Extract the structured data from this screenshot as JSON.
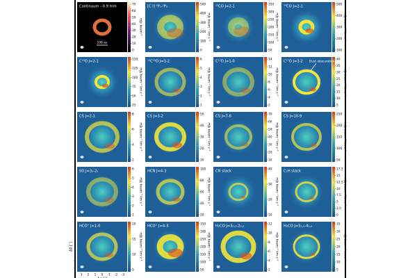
{
  "panels": [
    {
      "label": "Continuum - 0.9 mm",
      "colorbar_label": "mJy beam⁻¹",
      "ticks": [
        0,
        10,
        20,
        30,
        40,
        50,
        60,
        70
      ]
    },
    {
      "label": "[C I] ³P₁-³P₀",
      "colorbar_label": "mJy beam⁻¹ km s⁻¹",
      "ticks": [
        0,
        100,
        200,
        300,
        400,
        500
      ]
    },
    {
      "label": "¹²CO J=2-1",
      "colorbar_label": "mJy beam⁻¹ km s⁻¹",
      "ticks": [
        50,
        100,
        150,
        200,
        250,
        300,
        350
      ]
    },
    {
      "label": "¹³CO J=2-1",
      "colorbar_label": "mJy beam⁻¹ km s⁻¹",
      "ticks": [
        100,
        200,
        300,
        400,
        500
      ]
    },
    {
      "label": "C¹⁸O J=2-1",
      "colorbar_label": "mJy beam⁻¹ km s⁻¹",
      "ticks": [
        25,
        50,
        75,
        100,
        125,
        150
      ]
    },
    {
      "label": "¹³C¹⁸O J=3-2",
      "colorbar_label": "mJy beam⁻¹ km s⁻¹",
      "ticks": [
        1,
        2,
        3,
        4,
        5,
        6
      ]
    },
    {
      "label": "C¹⁷O J=1-0",
      "colorbar_label": "mJy beam⁻¹ km s⁻¹",
      "ticks": [
        2,
        4,
        6,
        8,
        10,
        12,
        14
      ]
    },
    {
      "label": "C¹⁷O J=3-2",
      "colorbar_label": "mJy beam⁻¹ km s⁻¹",
      "ticks": [
        5,
        10,
        15,
        20,
        25,
        30,
        35,
        40
      ]
    },
    {
      "label": "CS J=2-1",
      "colorbar_label": "mJy beam⁻¹ km s⁻¹",
      "ticks": [
        2,
        4,
        6,
        8
      ]
    },
    {
      "label": "CS J=3-2",
      "colorbar_label": "mJy beam⁻¹ km s⁻¹",
      "ticks": [
        10,
        20,
        30,
        40,
        50
      ]
    },
    {
      "label": "CS J=7-6",
      "colorbar_label": "mJy beam⁻¹ km s⁻¹",
      "ticks": [
        10,
        20,
        30,
        40,
        50,
        60,
        70
      ]
    },
    {
      "label": "CS J=10-9",
      "colorbar_label": "mJy beam⁻¹ km s⁻¹",
      "ticks": [
        50,
        100,
        150,
        200,
        250
      ]
    },
    {
      "label": "SO J=3₂-2₁",
      "colorbar_label": "mJy beam⁻¹ km s⁻¹",
      "ticks": [
        1,
        2,
        3,
        4,
        5,
        6
      ]
    },
    {
      "label": "HCN J=4-3",
      "colorbar_label": "mJy beam⁻¹ km s⁻¹",
      "ticks": [
        20,
        40,
        60,
        80,
        100
      ]
    },
    {
      "label": "CN stack",
      "colorbar_label": "mJy beam⁻¹ km s⁻¹",
      "ticks": [
        10,
        20,
        30,
        40
      ]
    },
    {
      "label": "C₂H stack",
      "colorbar_label": "mJy beam⁻¹ km s⁻¹",
      "ticks": [
        0,
        2.5,
        5,
        7.5,
        10,
        12.5,
        15,
        17.5
      ]
    },
    {
      "label": "HCO⁺ J=1-0",
      "colorbar_label": "mJy beam⁻¹ km s⁻¹",
      "ticks": [
        5,
        10,
        15,
        20
      ]
    },
    {
      "label": "HCO⁺ J=4-3",
      "colorbar_label": "mJy beam⁻¹ km s⁻¹",
      "ticks": [
        50,
        100,
        150,
        200,
        250,
        300,
        350
      ]
    },
    {
      "label": "H₂CO J=3₀,₃-2₀,₂",
      "colorbar_label": "mJy beam⁻¹ km s⁻¹",
      "ticks": [
        2,
        4,
        6,
        8,
        10,
        12
      ]
    },
    {
      "label": "H₂CO J=5₁,₅-4₁,₄",
      "colorbar_label": "mJy beam⁻¹ km s⁻¹",
      "ticks": [
        5,
        10,
        15,
        20,
        25,
        30,
        35
      ]
    }
  ],
  "scale_bar": "100 au",
  "annotation": "Dust obscuration",
  "x_axis_label": "Δα [″]",
  "y_axis_label": "Δδ [″]",
  "axis_ticks": [
    3,
    2,
    1,
    0,
    -1,
    -2,
    -3
  ]
}
